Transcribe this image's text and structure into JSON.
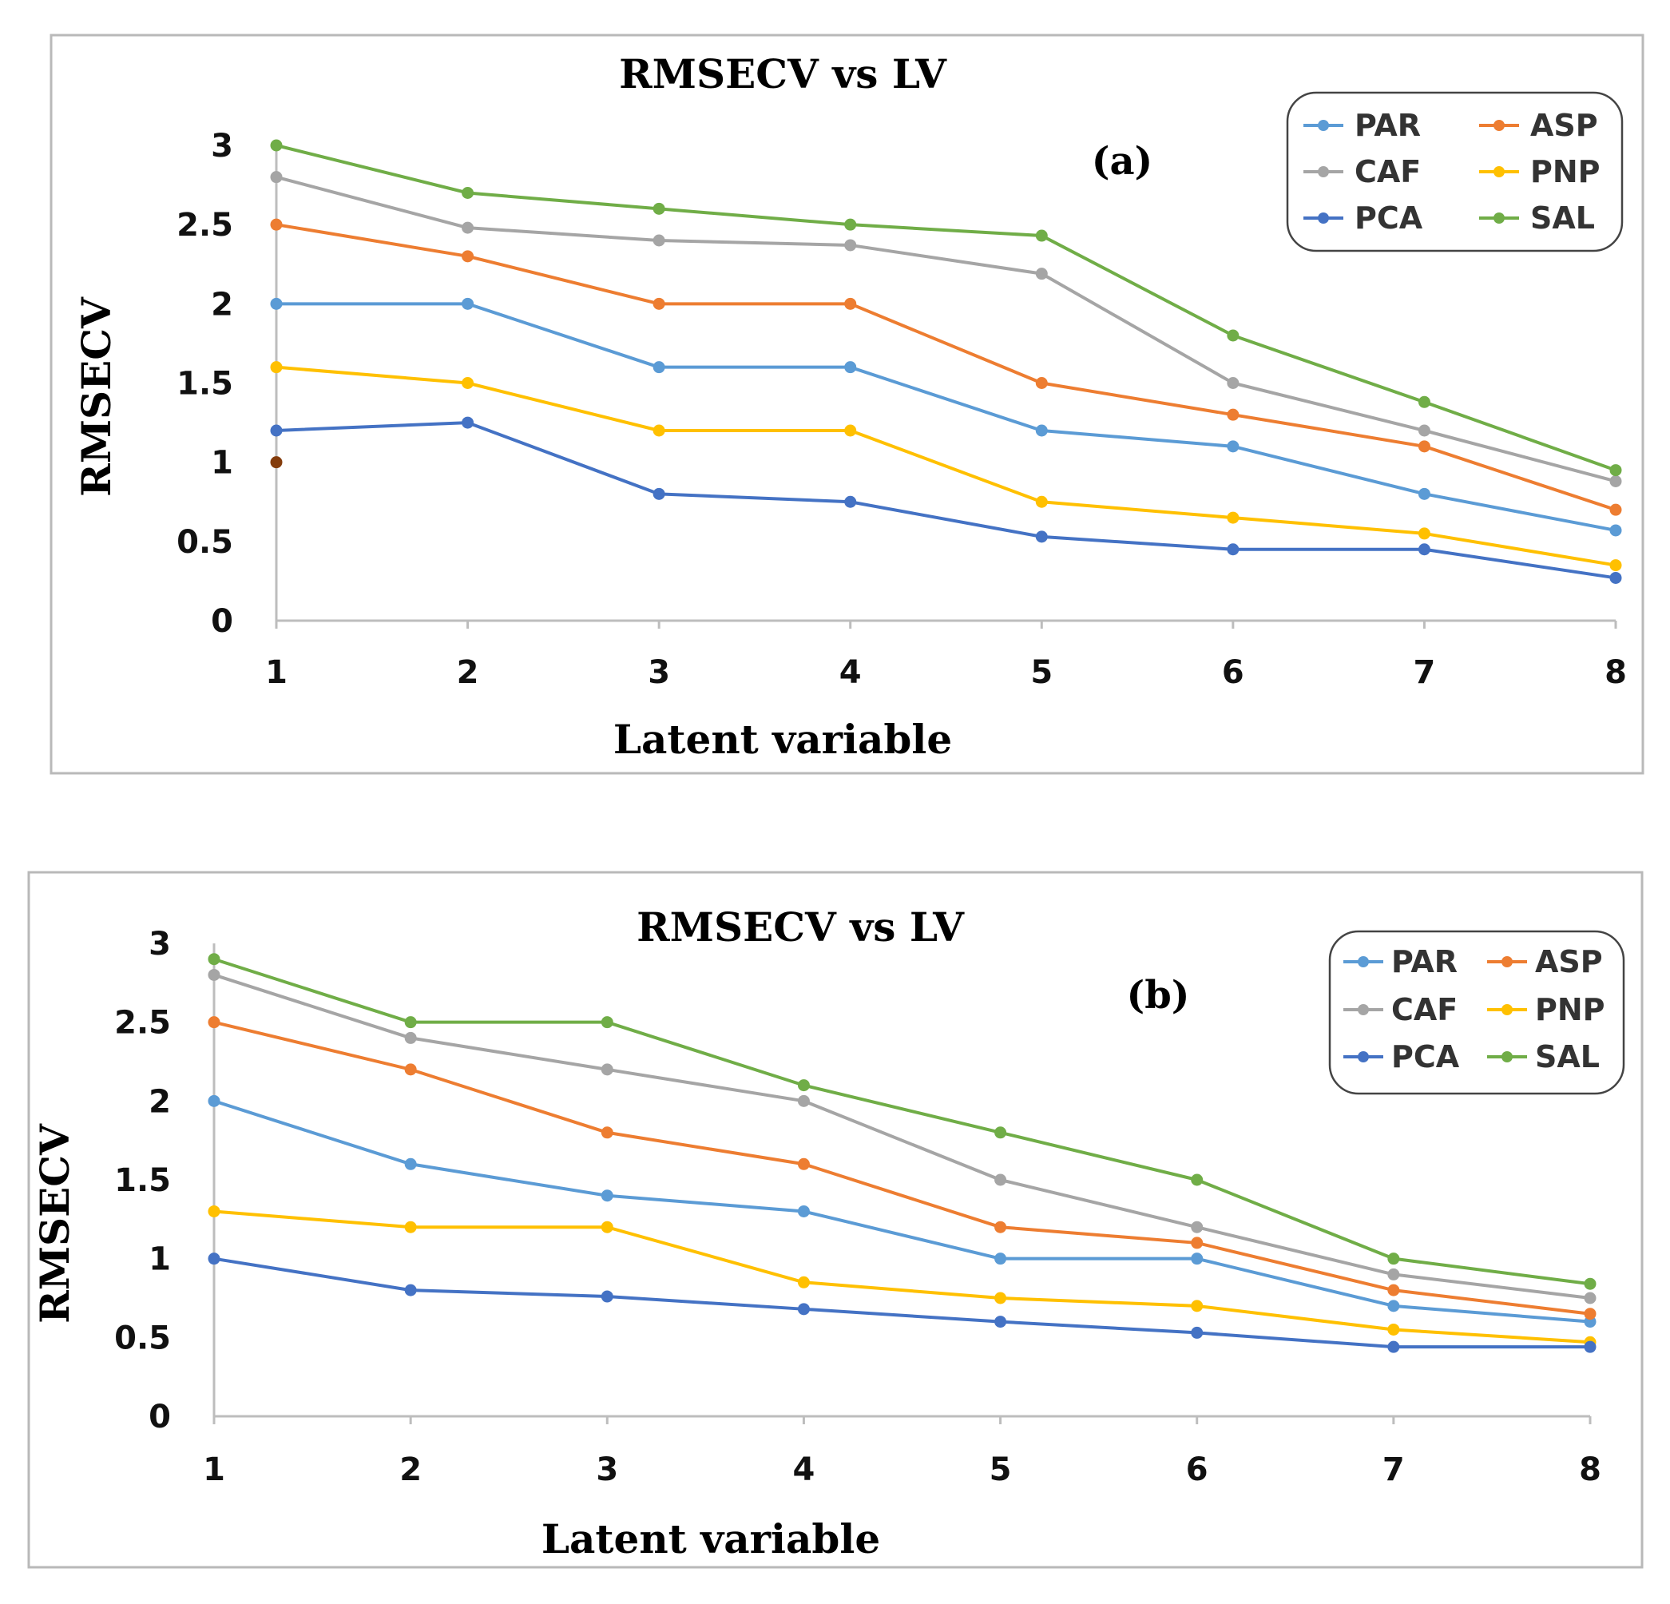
{
  "chart_data": [
    {
      "type": "line",
      "title": "RMSECV vs LV",
      "panel_label": "(a)",
      "xlabel": "Latent variable",
      "ylabel": "RMSECV",
      "categories": [
        "1",
        "2",
        "3",
        "4",
        "5",
        "6",
        "7",
        "8"
      ],
      "x_ticks": [
        "1",
        "2",
        "3",
        "4",
        "5",
        "6",
        "7",
        "8"
      ],
      "y_ticks": [
        "0",
        "0.5",
        "1",
        "1.5",
        "2",
        "2.5",
        "3"
      ],
      "ylim": [
        0,
        3
      ],
      "grid": false,
      "legend_position": "top-right",
      "series": [
        {
          "name": "PAR",
          "color": "#5b9bd5",
          "values": [
            2.0,
            2.0,
            1.6,
            1.6,
            1.2,
            1.1,
            0.8,
            0.57
          ]
        },
        {
          "name": "ASP",
          "color": "#ed7d31",
          "values": [
            2.5,
            2.3,
            2.0,
            2.0,
            1.5,
            1.3,
            1.1,
            0.7
          ]
        },
        {
          "name": "CAF",
          "color": "#a5a5a5",
          "values": [
            2.8,
            2.48,
            2.4,
            2.37,
            2.19,
            1.5,
            1.2,
            0.88
          ]
        },
        {
          "name": "PNP",
          "color": "#ffc000",
          "values": [
            1.6,
            1.5,
            1.2,
            1.2,
            0.75,
            0.65,
            0.55,
            0.35
          ]
        },
        {
          "name": "PCA",
          "color": "#4472c4",
          "values": [
            1.2,
            1.25,
            0.8,
            0.75,
            0.53,
            0.45,
            0.45,
            0.27
          ]
        },
        {
          "name": "SAL",
          "color": "#70ad47",
          "values": [
            3.0,
            2.7,
            2.6,
            2.5,
            2.43,
            1.8,
            1.38,
            0.95
          ]
        }
      ],
      "extra_marker": {
        "x": "1",
        "y": 1.0,
        "color": "#843c0c"
      }
    },
    {
      "type": "line",
      "title": "RMSECV vs LV",
      "panel_label": "(b)",
      "xlabel": "Latent variable",
      "ylabel": "RMSECV",
      "categories": [
        "1",
        "2",
        "3",
        "4",
        "5",
        "6",
        "7",
        "8"
      ],
      "x_ticks": [
        "1",
        "2",
        "3",
        "4",
        "5",
        "6",
        "7",
        "8"
      ],
      "y_ticks": [
        "0",
        "0.5",
        "1",
        "1.5",
        "2",
        "2.5",
        "3"
      ],
      "ylim": [
        0,
        3
      ],
      "grid": false,
      "legend_position": "top-right",
      "series": [
        {
          "name": "PAR",
          "color": "#5b9bd5",
          "values": [
            2.0,
            1.6,
            1.4,
            1.3,
            1.0,
            1.0,
            0.7,
            0.6
          ]
        },
        {
          "name": "ASP",
          "color": "#ed7d31",
          "values": [
            2.5,
            2.2,
            1.8,
            1.6,
            1.2,
            1.1,
            0.8,
            0.65
          ]
        },
        {
          "name": "CAF",
          "color": "#a5a5a5",
          "values": [
            2.8,
            2.4,
            2.2,
            2.0,
            1.5,
            1.2,
            0.9,
            0.75
          ]
        },
        {
          "name": "PNP",
          "color": "#ffc000",
          "values": [
            1.3,
            1.2,
            1.2,
            0.85,
            0.75,
            0.7,
            0.55,
            0.47
          ]
        },
        {
          "name": "PCA",
          "color": "#4472c4",
          "values": [
            1.0,
            0.8,
            0.76,
            0.68,
            0.6,
            0.53,
            0.44,
            0.44
          ]
        },
        {
          "name": "SAL",
          "color": "#70ad47",
          "values": [
            2.9,
            2.5,
            2.5,
            2.1,
            1.8,
            1.5,
            1.0,
            0.84
          ]
        }
      ]
    }
  ]
}
